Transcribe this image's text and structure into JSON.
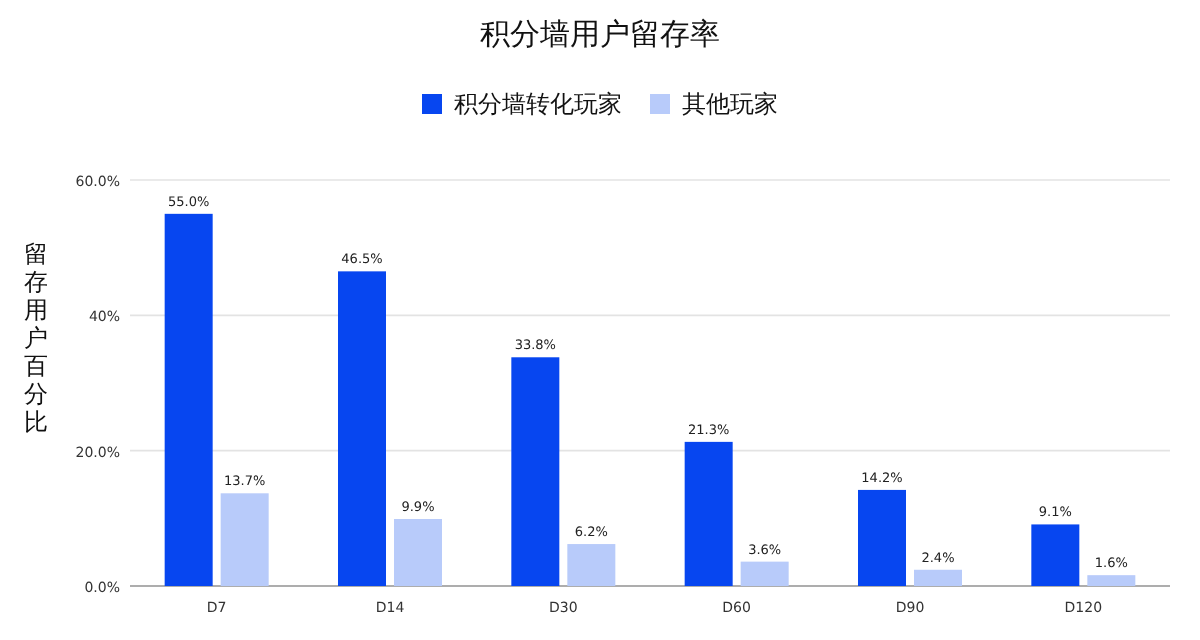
{
  "chart_data": {
    "type": "bar",
    "title": "积分墙用户留存率",
    "ylabel": "留存用户百分比",
    "categories": [
      "D7",
      "D14",
      "D30",
      "D60",
      "D90",
      "D120"
    ],
    "series": [
      {
        "name": "积分墙转化玩家",
        "color": "#0746f0",
        "values": [
          55.0,
          46.5,
          33.8,
          21.3,
          14.2,
          9.1
        ],
        "value_labels": [
          "55.0%",
          "46.5%",
          "33.8%",
          "21.3%",
          "14.2%",
          "9.1%"
        ]
      },
      {
        "name": "其他玩家",
        "color": "#b8cbfa",
        "values": [
          13.7,
          9.9,
          6.2,
          3.6,
          2.4,
          1.6
        ],
        "value_labels": [
          "13.7%",
          "9.9%",
          "6.2%",
          "3.6%",
          "2.4%",
          "1.6%"
        ]
      }
    ],
    "ylim": [
      0,
      60
    ],
    "yticks": [
      {
        "value": 0,
        "label": "0.0%"
      },
      {
        "value": 20,
        "label": "20.0%"
      },
      {
        "value": 40,
        "label": "40%"
      },
      {
        "value": 60,
        "label": "60.0%"
      }
    ],
    "grid": "y",
    "legend": "top"
  }
}
